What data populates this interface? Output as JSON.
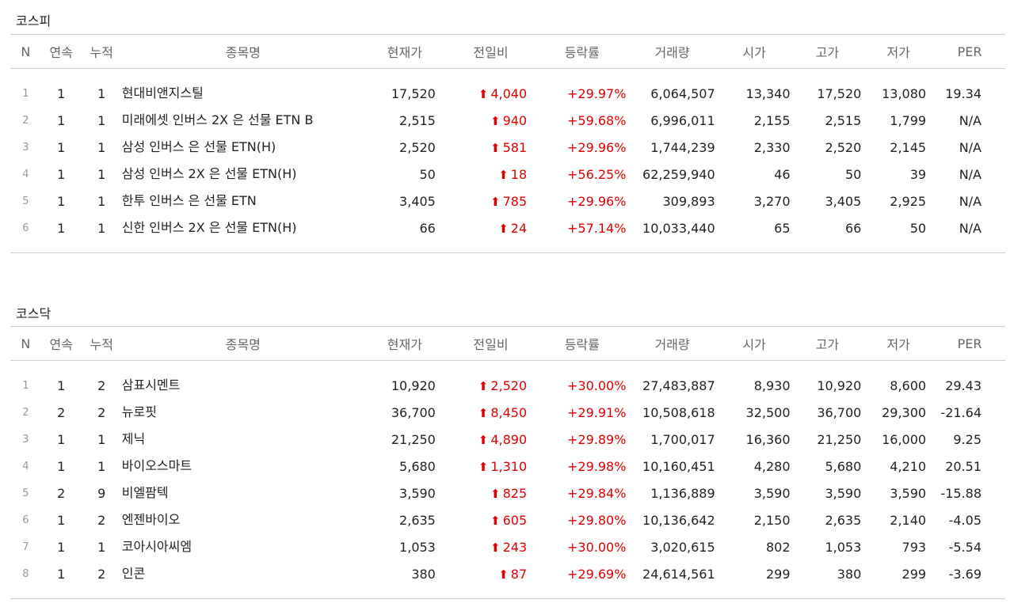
{
  "headers": {
    "n": "N",
    "streak": "연속",
    "cumulative": "누적",
    "name": "종목명",
    "price": "현재가",
    "change": "전일비",
    "rate": "등락률",
    "volume": "거래량",
    "open": "시가",
    "high": "고가",
    "low": "저가",
    "per": "PER"
  },
  "kospi": {
    "title": "코스피",
    "rows": [
      {
        "n": "1",
        "streak": "1",
        "cum": "1",
        "name": "현대비앤지스틸",
        "price": "17,520",
        "change": "4,040",
        "rate": "+29.97%",
        "volume": "6,064,507",
        "open": "13,340",
        "high": "17,520",
        "low": "13,080",
        "per": "19.34"
      },
      {
        "n": "2",
        "streak": "1",
        "cum": "1",
        "name": "미래에셋 인버스 2X 은 선물 ETN B",
        "price": "2,515",
        "change": "940",
        "rate": "+59.68%",
        "volume": "6,996,011",
        "open": "2,155",
        "high": "2,515",
        "low": "1,799",
        "per": "N/A"
      },
      {
        "n": "3",
        "streak": "1",
        "cum": "1",
        "name": "삼성 인버스 은 선물 ETN(H)",
        "price": "2,520",
        "change": "581",
        "rate": "+29.96%",
        "volume": "1,744,239",
        "open": "2,330",
        "high": "2,520",
        "low": "2,145",
        "per": "N/A"
      },
      {
        "n": "4",
        "streak": "1",
        "cum": "1",
        "name": "삼성 인버스 2X 은 선물 ETN(H)",
        "price": "50",
        "change": "18",
        "rate": "+56.25%",
        "volume": "62,259,940",
        "open": "46",
        "high": "50",
        "low": "39",
        "per": "N/A"
      },
      {
        "n": "5",
        "streak": "1",
        "cum": "1",
        "name": "한투 인버스 은 선물 ETN",
        "price": "3,405",
        "change": "785",
        "rate": "+29.96%",
        "volume": "309,893",
        "open": "3,270",
        "high": "3,405",
        "low": "2,925",
        "per": "N/A"
      },
      {
        "n": "6",
        "streak": "1",
        "cum": "1",
        "name": "신한 인버스 2X 은 선물 ETN(H)",
        "price": "66",
        "change": "24",
        "rate": "+57.14%",
        "volume": "10,033,440",
        "open": "65",
        "high": "66",
        "low": "50",
        "per": "N/A"
      }
    ]
  },
  "kosdaq": {
    "title": "코스닥",
    "rows": [
      {
        "n": "1",
        "streak": "1",
        "cum": "2",
        "name": "삼표시멘트",
        "price": "10,920",
        "change": "2,520",
        "rate": "+30.00%",
        "volume": "27,483,887",
        "open": "8,930",
        "high": "10,920",
        "low": "8,600",
        "per": "29.43"
      },
      {
        "n": "2",
        "streak": "2",
        "cum": "2",
        "name": "뉴로핏",
        "price": "36,700",
        "change": "8,450",
        "rate": "+29.91%",
        "volume": "10,508,618",
        "open": "32,500",
        "high": "36,700",
        "low": "29,300",
        "per": "-21.64"
      },
      {
        "n": "3",
        "streak": "1",
        "cum": "1",
        "name": "제닉",
        "price": "21,250",
        "change": "4,890",
        "rate": "+29.89%",
        "volume": "1,700,017",
        "open": "16,360",
        "high": "21,250",
        "low": "16,000",
        "per": "9.25"
      },
      {
        "n": "4",
        "streak": "1",
        "cum": "1",
        "name": "바이오스마트",
        "price": "5,680",
        "change": "1,310",
        "rate": "+29.98%",
        "volume": "10,160,451",
        "open": "4,280",
        "high": "5,680",
        "low": "4,210",
        "per": "20.51"
      },
      {
        "n": "5",
        "streak": "2",
        "cum": "9",
        "name": "비엘팜텍",
        "price": "3,590",
        "change": "825",
        "rate": "+29.84%",
        "volume": "1,136,889",
        "open": "3,590",
        "high": "3,590",
        "low": "3,590",
        "per": "-15.88"
      },
      {
        "n": "6",
        "streak": "1",
        "cum": "2",
        "name": "엔젠바이오",
        "price": "2,635",
        "change": "605",
        "rate": "+29.80%",
        "volume": "10,136,642",
        "open": "2,150",
        "high": "2,635",
        "low": "2,140",
        "per": "-4.05"
      },
      {
        "n": "7",
        "streak": "1",
        "cum": "1",
        "name": "코아시아씨엠",
        "price": "1,053",
        "change": "243",
        "rate": "+30.00%",
        "volume": "3,020,615",
        "open": "802",
        "high": "1,053",
        "low": "793",
        "per": "-5.54"
      },
      {
        "n": "8",
        "streak": "1",
        "cum": "2",
        "name": "인콘",
        "price": "380",
        "change": "87",
        "rate": "+29.69%",
        "volume": "24,614,561",
        "open": "299",
        "high": "380",
        "low": "299",
        "per": "-3.69"
      }
    ]
  },
  "colors": {
    "up": "#e00000",
    "border": "#cfcfcf",
    "muted": "#999999"
  },
  "icons": {
    "change_up": "up-arrow-icon"
  }
}
